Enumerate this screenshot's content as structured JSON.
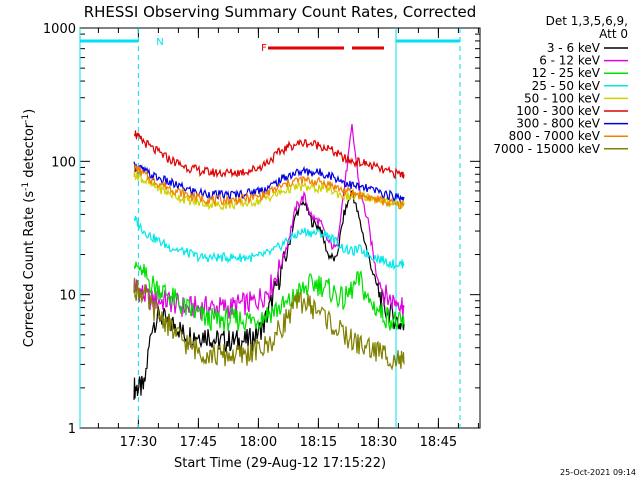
{
  "chart_data": {
    "type": "line",
    "title": "RHESSI Observing Summary Count Rates, Corrected",
    "xlabel": "Start Time (29-Aug-12 17:15:22)",
    "ylabel_main": "Corrected Count Rate (s",
    "ylabel_sup1": "-1",
    "ylabel_mid": " detector",
    "ylabel_sup2": "-1",
    "ylabel_end": ")",
    "yscale": "log",
    "ylim": [
      1,
      1000
    ],
    "xlim_minutes": [
      0,
      100
    ],
    "x_ticks": [
      {
        "label": "17:30",
        "min": 14.6
      },
      {
        "label": "17:45",
        "min": 29.6
      },
      {
        "label": "18:00",
        "min": 44.6
      },
      {
        "label": "18:15",
        "min": 59.6
      },
      {
        "label": "18:30",
        "min": 74.6
      },
      {
        "label": "18:45",
        "min": 89.6
      }
    ],
    "y_ticks": [
      {
        "label": "1",
        "value": 1
      },
      {
        "label": "10",
        "value": 10
      },
      {
        "label": "100",
        "value": 100
      },
      {
        "label": "1000",
        "value": 1000
      }
    ],
    "legend": {
      "header1": "Det 1,3,5,6,9,",
      "header2": "Att 0",
      "position": "right"
    },
    "x": [
      13.5,
      14.5,
      16,
      18,
      20,
      22,
      24,
      26,
      28,
      30,
      32,
      34,
      36,
      38,
      40,
      42,
      44,
      46,
      48,
      50,
      52,
      54,
      56,
      58,
      60,
      62,
      64,
      66,
      68,
      70,
      72,
      74,
      76,
      78,
      80,
      81
    ],
    "series": [
      {
        "name": "3 - 6 keV",
        "color": "#000000",
        "values": [
          2,
          2,
          2,
          6,
          7,
          6,
          6,
          5,
          5,
          5,
          5,
          4.5,
          4.5,
          4.5,
          4.5,
          4.5,
          5,
          6,
          9,
          14,
          22,
          40,
          50,
          35,
          32,
          20,
          18,
          40,
          60,
          35,
          20,
          12,
          8,
          7,
          6,
          6
        ]
      },
      {
        "name": "6 - 12 keV",
        "color": "#e000e0",
        "values": [
          12,
          11,
          10,
          9,
          9,
          9,
          8.5,
          8,
          8,
          8,
          8,
          8,
          8,
          8,
          8.5,
          8.5,
          9,
          10,
          12,
          16,
          25,
          45,
          55,
          38,
          35,
          25,
          22,
          60,
          180,
          60,
          35,
          15,
          10,
          9,
          9,
          8
        ]
      },
      {
        "name": "12 - 25 keV",
        "color": "#00e000",
        "values": [
          17,
          16,
          14,
          12,
          11,
          10,
          9,
          8,
          7.5,
          7,
          6.5,
          6.5,
          6.5,
          6.5,
          6.5,
          6.5,
          6.5,
          7,
          7.5,
          8,
          8.5,
          10,
          11,
          12,
          12,
          11,
          10,
          9,
          11,
          13,
          9,
          8,
          7,
          6.5,
          6,
          6
        ]
      },
      {
        "name": "25 - 50 keV",
        "color": "#00e8e8",
        "values": [
          38,
          34,
          30,
          27,
          25,
          23,
          22,
          21,
          20,
          19,
          19,
          19,
          19,
          19,
          19,
          19,
          19,
          20,
          21,
          23,
          26,
          28,
          30,
          29,
          29,
          28,
          25,
          22,
          21,
          22,
          20,
          19,
          18,
          17,
          17,
          17
        ]
      },
      {
        "name": "50 - 100 keV",
        "color": "#d0d000",
        "values": [
          80,
          78,
          72,
          66,
          62,
          58,
          55,
          52,
          50,
          49,
          48,
          47,
          47,
          47,
          48,
          49,
          50,
          52,
          55,
          58,
          62,
          64,
          64,
          63,
          63,
          62,
          58,
          55,
          54,
          55,
          54,
          52,
          50,
          49,
          48,
          48
        ]
      },
      {
        "name": "100 - 300 keV",
        "color": "#e00000",
        "values": [
          170,
          150,
          140,
          125,
          115,
          105,
          98,
          92,
          88,
          85,
          83,
          82,
          82,
          82,
          83,
          85,
          88,
          95,
          105,
          118,
          128,
          135,
          138,
          135,
          132,
          125,
          115,
          105,
          100,
          98,
          95,
          90,
          85,
          82,
          80,
          80
        ]
      },
      {
        "name": "300 - 800 keV",
        "color": "#0000e0",
        "values": [
          92,
          90,
          85,
          78,
          74,
          70,
          66,
          63,
          60,
          58,
          57,
          56,
          56,
          56,
          57,
          58,
          60,
          62,
          66,
          72,
          78,
          82,
          84,
          83,
          82,
          80,
          75,
          70,
          66,
          64,
          62,
          60,
          57,
          55,
          54,
          54
        ]
      },
      {
        "name": "800 - 7000 keV",
        "color": "#f08000",
        "values": [
          90,
          86,
          80,
          72,
          68,
          64,
          60,
          57,
          55,
          53,
          52,
          51,
          51,
          51,
          52,
          53,
          54,
          56,
          60,
          64,
          68,
          72,
          72,
          71,
          70,
          68,
          64,
          60,
          58,
          56,
          54,
          52,
          50,
          48,
          47,
          47
        ]
      },
      {
        "name": "7000 - 15000 keV",
        "color": "#808000",
        "values": [
          11,
          11,
          10,
          8,
          7,
          6,
          5,
          4.5,
          4,
          3.8,
          3.6,
          3.5,
          3.5,
          3.5,
          3.5,
          3.6,
          3.8,
          4,
          4.5,
          5.5,
          7,
          8.5,
          9,
          8,
          7.5,
          6.5,
          5.5,
          5,
          4.5,
          4.2,
          4,
          3.8,
          3.6,
          3.4,
          3.2,
          3
        ]
      }
    ],
    "flags": {
      "night_marker": "N",
      "flare_marker": "F",
      "night_intervals_min": [
        [
          0,
          14.6
        ],
        [
          79,
          95
        ]
      ],
      "flare_intervals_min": [
        [
          47,
          66
        ],
        [
          68,
          76
        ]
      ]
    },
    "grid": false
  },
  "footer": {
    "timestamp": "25-Oct-2021 09:14"
  },
  "colors": {
    "night": "#00e0f0",
    "flare": "#e00000",
    "axes": "#000000"
  }
}
